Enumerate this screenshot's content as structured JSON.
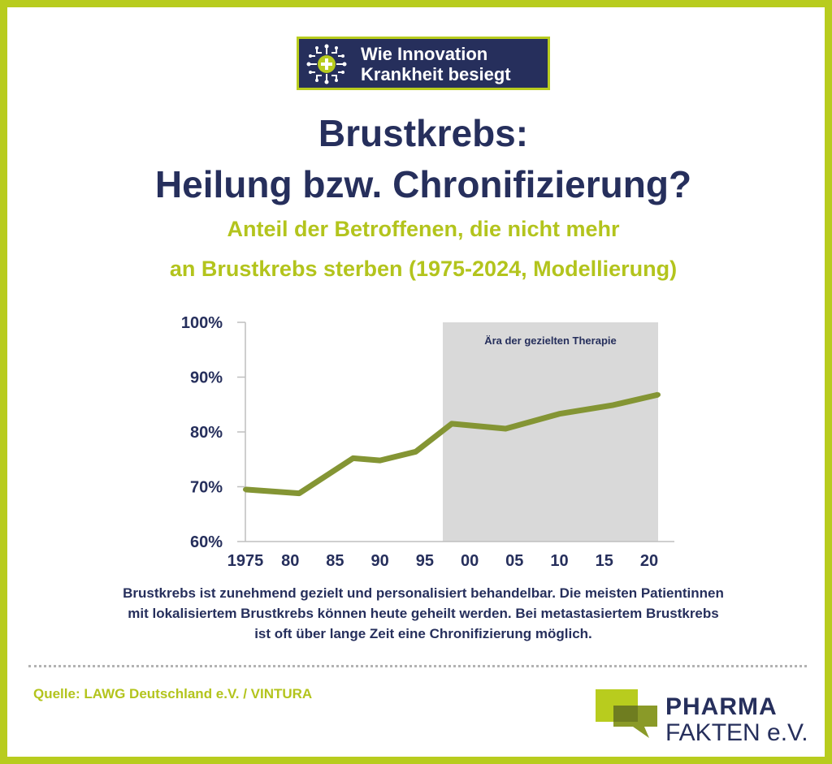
{
  "badge": {
    "icon": "circuit-plus-icon",
    "line1": "Wie Innovation",
    "line2": "Krankheit besiegt"
  },
  "title": {
    "line1": "Brustkrebs:",
    "line2": "Heilung bzw. Chronifizierung?"
  },
  "subtitle": {
    "line1": "Anteil der Betroffenen, die nicht mehr",
    "line2": "an Brustkrebs sterben (1975-2024, Modellierung)"
  },
  "description": {
    "line1": "Brustkrebs ist zunehmend gezielt und personalisiert behandelbar. Die meisten Patientinnen",
    "line2": "mit lokalisiertem Brustkrebs können heute geheilt werden. Bei metastasiertem Brustkrebs",
    "line3": "ist oft über lange Zeit eine Chronifizierung möglich."
  },
  "source": "Quelle: LAWG Deutschland e.V. / VINTURA",
  "logo": {
    "line1": "PHARMA",
    "line2": "FAKTEN e.V."
  },
  "colors": {
    "frame": "#b8cc1e",
    "navy": "#262f5c",
    "accent": "#b3c41d",
    "line": "#849534",
    "shade": "#d9d9d9"
  },
  "chart_data": {
    "type": "line",
    "x": [
      1975,
      1981,
      1987,
      1990,
      1994,
      1998,
      2004,
      2010,
      2016,
      2021
    ],
    "series": [
      {
        "values": [
          69.5,
          68.8,
          75.2,
          74.8,
          76.4,
          81.5,
          80.6,
          83.3,
          84.9,
          86.8
        ]
      }
    ],
    "xlim": [
      1975,
      2021
    ],
    "ylim": [
      60,
      100
    ],
    "x_ticks": [
      1975,
      1980,
      1985,
      1990,
      1995,
      2000,
      2005,
      2010,
      2015,
      2020
    ],
    "x_tick_labels": [
      "1975",
      "80",
      "85",
      "90",
      "95",
      "00",
      "05",
      "10",
      "15",
      "20"
    ],
    "y_ticks": [
      60,
      70,
      80,
      90,
      100
    ],
    "y_tick_labels": [
      "60%",
      "70%",
      "80%",
      "90%",
      "100%"
    ],
    "shaded_region": {
      "x_start": 1997,
      "x_end": 2021,
      "label": "Ära der gezielten Therapie"
    },
    "grid": false,
    "legend": "none"
  }
}
